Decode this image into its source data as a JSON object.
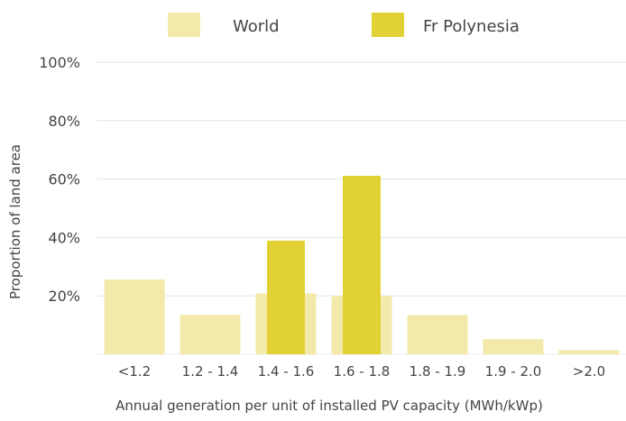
{
  "chart_data": {
    "type": "bar",
    "title": "",
    "xlabel": "Annual generation per unit of installed PV capacity (MWh/kWp)",
    "ylabel": "Proportion of land area",
    "categories": [
      "<1.2",
      "1.2 - 1.4",
      "1.4 - 1.6",
      "1.6 - 1.8",
      "1.8 - 1.9",
      "1.9 - 2.0",
      ">2.0"
    ],
    "ylim": [
      0,
      100
    ],
    "yticks": [
      20,
      40,
      60,
      80,
      100
    ],
    "ytick_labels": [
      "20%",
      "40%",
      "60%",
      "80%",
      "100%"
    ],
    "grid": true,
    "legend_position": "top",
    "series": [
      {
        "name": "World",
        "color": "#F3E9AB",
        "values": [
          25.6,
          13.5,
          20.8,
          20.0,
          13.4,
          5.2,
          1.4
        ]
      },
      {
        "name": "Fr Polynesia",
        "color": "#E2D135",
        "values": [
          0,
          0,
          38.9,
          61.1,
          0,
          0,
          0
        ]
      }
    ]
  }
}
